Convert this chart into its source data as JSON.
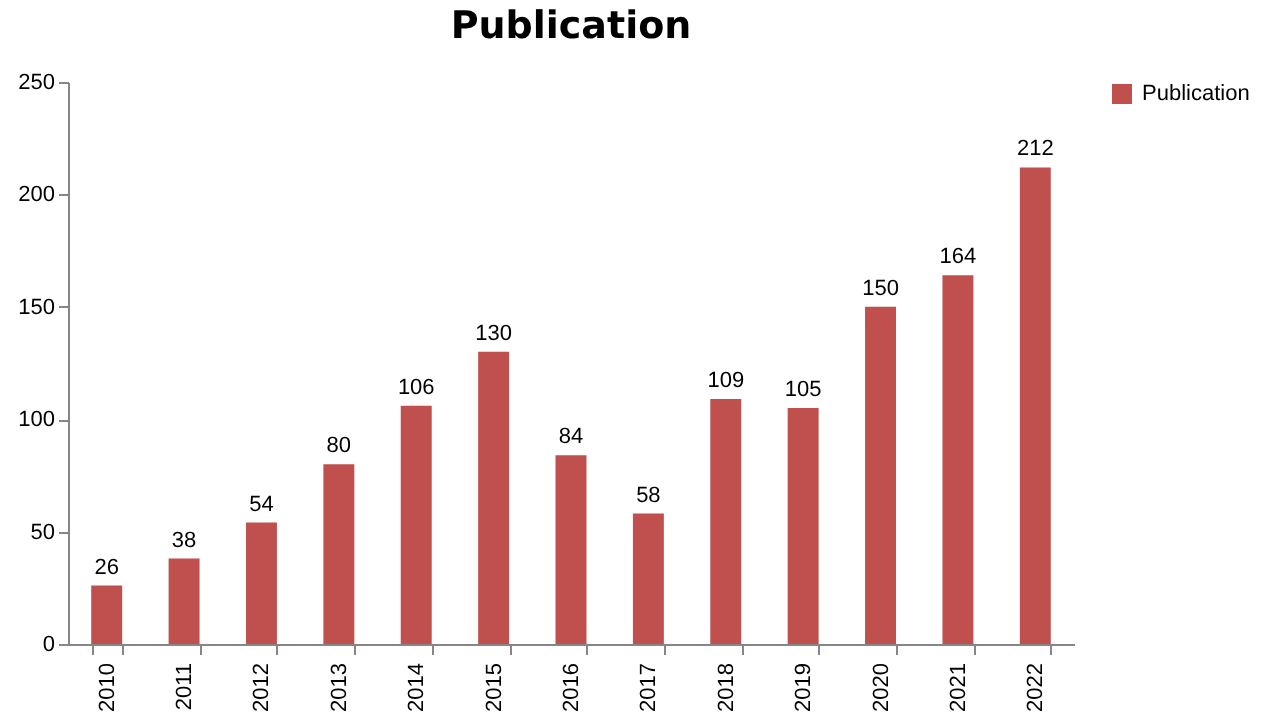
{
  "chart_data": {
    "type": "bar",
    "title": "Publication",
    "categories": [
      "2010",
      "2011",
      "2012",
      "2013",
      "2014",
      "2015",
      "2016",
      "2017",
      "2018",
      "2019",
      "2020",
      "2021",
      "2022"
    ],
    "series": [
      {
        "name": "Publication",
        "color": "#c0504d",
        "values": [
          26,
          38,
          54,
          80,
          106,
          130,
          84,
          58,
          109,
          105,
          150,
          164,
          212
        ]
      }
    ],
    "ylim": [
      0,
      250
    ],
    "yticks": [
      0,
      50,
      100,
      150,
      200,
      250
    ],
    "data_labels": true,
    "grid": false,
    "legend": "right"
  }
}
